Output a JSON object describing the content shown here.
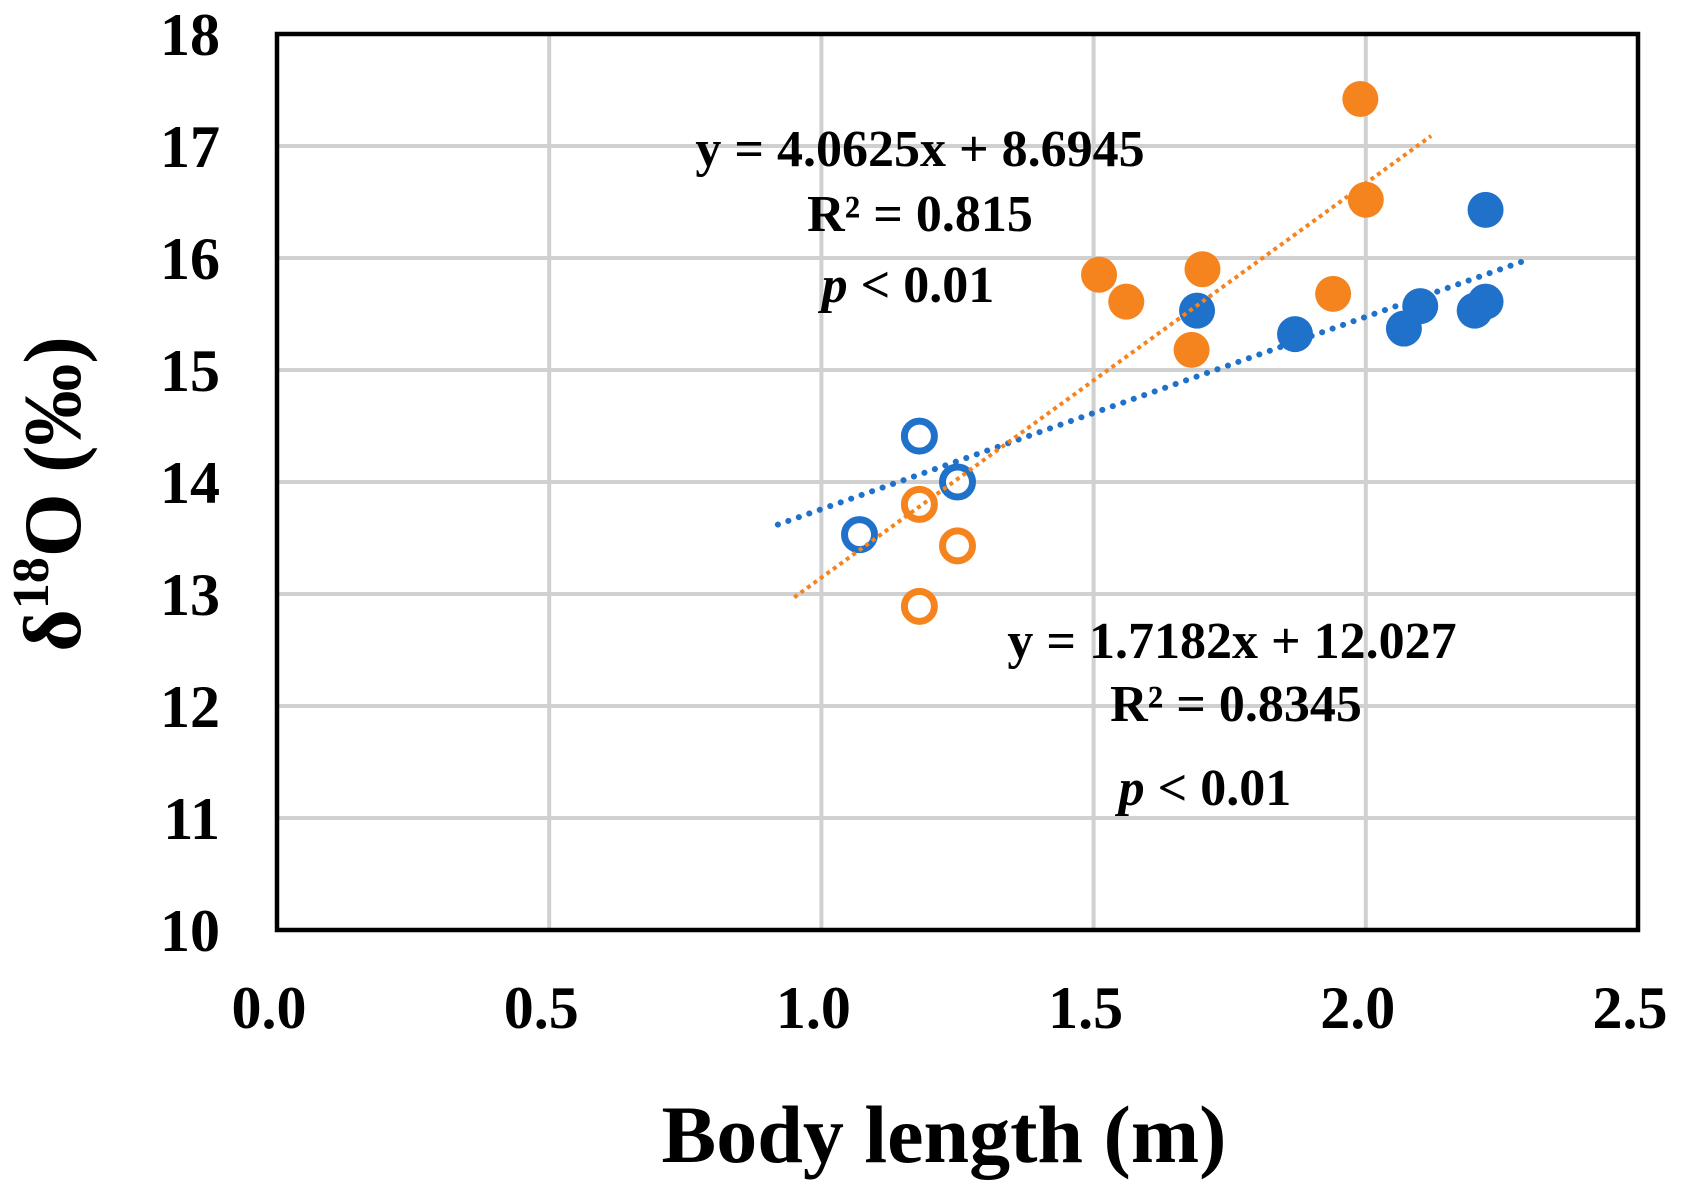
{
  "chart_data": {
    "type": "scatter",
    "title": "",
    "xlabel": "Body length (m)",
    "ylabel": {
      "prefix": "δ",
      "sup": "18",
      "suffix": "O (‰)"
    },
    "xlim": [
      0,
      2.5
    ],
    "ylim": [
      10,
      18
    ],
    "xticks": [
      0.0,
      0.5,
      1.0,
      1.5,
      2.0,
      2.5
    ],
    "xtick_labels": [
      "0.0",
      "0.5",
      "1.0",
      "1.5",
      "2.0",
      "2.5"
    ],
    "yticks": [
      10,
      11,
      12,
      13,
      14,
      15,
      16,
      17,
      18
    ],
    "ytick_labels": [
      "10",
      "11",
      "12",
      "13",
      "14",
      "15",
      "16",
      "17",
      "18"
    ],
    "grid": true,
    "series": [
      {
        "color": "#1f71c9",
        "filled": [
          [
            1.69,
            15.53
          ],
          [
            1.87,
            15.32
          ],
          [
            2.07,
            15.37
          ],
          [
            2.1,
            15.57
          ],
          [
            2.2,
            15.53
          ],
          [
            2.22,
            15.61
          ],
          [
            2.22,
            16.43
          ]
        ],
        "open": [
          [
            1.18,
            14.41
          ],
          [
            1.25,
            14.0
          ],
          [
            1.07,
            13.53
          ]
        ],
        "trendline": [
          [
            0.92,
            13.62
          ],
          [
            2.3,
            15.99
          ]
        ]
      },
      {
        "color": "#f5841f",
        "filled": [
          [
            1.99,
            17.42
          ],
          [
            2.0,
            16.52
          ],
          [
            1.51,
            15.85
          ],
          [
            1.56,
            15.61
          ],
          [
            1.7,
            15.9
          ],
          [
            1.94,
            15.68
          ],
          [
            1.68,
            15.18
          ]
        ],
        "open": [
          [
            1.18,
            13.8
          ],
          [
            1.25,
            13.43
          ],
          [
            1.18,
            12.89
          ]
        ],
        "trendline": [
          [
            0.95,
            12.97
          ],
          [
            2.12,
            17.09
          ]
        ]
      }
    ],
    "annotations": [
      {
        "color": "#8a8a8a",
        "equation": "y = 4.0625x + 8.6945",
        "r2": "R² = 0.815",
        "p_symbol": "p",
        "p_text": " < 0.01"
      },
      {
        "color": "#000000",
        "equation": "y = 1.7182x + 12.027",
        "r2": "R² = 0.8345",
        "p_symbol": "p",
        "p_text": " < 0.01"
      }
    ]
  }
}
